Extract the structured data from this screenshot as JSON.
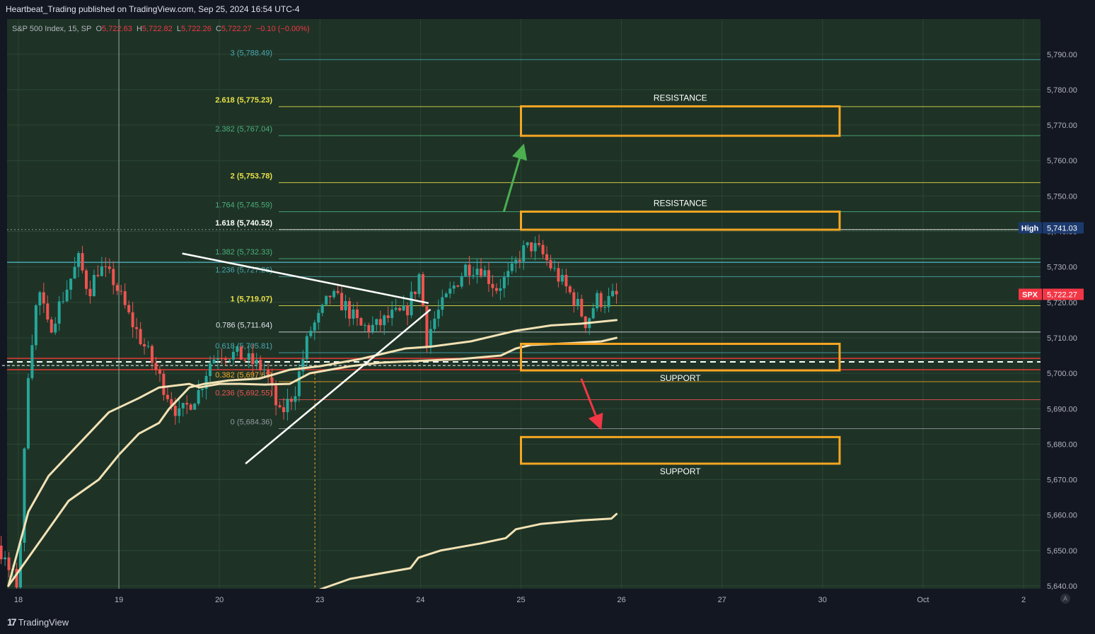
{
  "header": {
    "publisher": "Heartbeat_Trading published on TradingView.com, Sep 25, 2024 16:54 UTC-4"
  },
  "legend": {
    "symbol": "S&P 500 Index, 15, SP",
    "o_label": "O",
    "o": "5,722.63",
    "h_label": "H",
    "h": "5,722.82",
    "l_label": "L",
    "l": "5,722.26",
    "c_label": "C",
    "c": "5,722.27",
    "change": "−0.10 (−0.00%)"
  },
  "brand": {
    "logo": "17",
    "name": "TradingView"
  },
  "scale_button": "A",
  "colors": {
    "background": "#131722",
    "pane": "#1e3326",
    "up": "#26a69a",
    "down": "#ef5350",
    "zone": "#f5a623",
    "vwap": "#f3e2b5",
    "fib_yellow": "#e8e04a",
    "fib_green": "#4caf7d",
    "fib_teal": "#4aa6b0",
    "support_red": "#e53935",
    "arrow_up": "#4caf50",
    "arrow_down": "#f23645"
  },
  "chart_data": {
    "type": "candlestick",
    "symbol": "SPX",
    "interval": "15",
    "ylim": [
      5638,
      5800
    ],
    "xlim": [
      -1,
      31.3
    ],
    "y_ticks": [
      5640,
      5650,
      5660,
      5670,
      5680,
      5690,
      5700,
      5710,
      5720,
      5730,
      5740,
      5750,
      5760,
      5770,
      5780,
      5790
    ],
    "y_tick_labels": [
      "5,640.00",
      "5,650.00",
      "5,660.00",
      "5,670.00",
      "5,680.00",
      "5,690.00",
      "5,700.00",
      "5,710.00",
      "5,720.00",
      "5,730.00",
      "5,740.00",
      "5,750.00",
      "5,760.00",
      "5,770.00",
      "5,780.00",
      "5,790.00"
    ],
    "x_ticks": [
      {
        "t": 0,
        "label": "18"
      },
      {
        "t": 1,
        "label": "19"
      },
      {
        "t": 2,
        "label": "20"
      },
      {
        "t": 3,
        "label": "23"
      },
      {
        "t": 4,
        "label": "24"
      },
      {
        "t": 5,
        "label": "25"
      },
      {
        "t": 6,
        "label": "26"
      },
      {
        "t": 7,
        "label": "27"
      },
      {
        "t": 8,
        "label": "30"
      },
      {
        "t": 9,
        "label": "Oct"
      },
      {
        "t": 10,
        "label": "2"
      }
    ],
    "price_labels": [
      {
        "label": "High",
        "value": 5741.03,
        "text": "5,741.03",
        "color": "#1c3a6e"
      },
      {
        "label": "SPX",
        "value": 5722.27,
        "text": "5,722.27",
        "color": "#f23645"
      }
    ],
    "fib_levels": [
      {
        "ratio": "3",
        "price": 5788.49,
        "text": "3 (5,788.49)",
        "color": "#4aa6b0"
      },
      {
        "ratio": "2.618",
        "price": 5775.23,
        "text": "2.618 (5,775.23)",
        "color": "#e8e04a"
      },
      {
        "ratio": "2.382",
        "price": 5767.04,
        "text": "2.382 (5,767.04)",
        "color": "#4caf7d"
      },
      {
        "ratio": "2",
        "price": 5753.78,
        "text": "2 (5,753.78)",
        "color": "#e8e04a"
      },
      {
        "ratio": "1.764",
        "price": 5745.59,
        "text": "1.764 (5,745.59)",
        "color": "#4caf7d"
      },
      {
        "ratio": "1.618",
        "price": 5740.52,
        "text": "1.618 (5,740.52)",
        "color": "#ffffff"
      },
      {
        "ratio": "1.382",
        "price": 5732.33,
        "text": "1.382 (5,732.33)",
        "color": "#4caf7d"
      },
      {
        "ratio": "1.236",
        "price": 5727.26,
        "text": "1.236 (5,727.26)",
        "color": "#4aa6b0"
      },
      {
        "ratio": "1",
        "price": 5719.07,
        "text": "1 (5,719.07)",
        "color": "#e8e04a"
      },
      {
        "ratio": "0.786",
        "price": 5711.64,
        "text": "0.786 (5,711.64)",
        "color": "#e0e3eb"
      },
      {
        "ratio": "0.618",
        "price": 5705.81,
        "text": "0.618 (5,705.81)",
        "color": "#4aa6b0"
      },
      {
        "ratio": "0.382",
        "price": 5697.62,
        "text": "0.382 (5,697.62)",
        "color": "#f5a623"
      },
      {
        "ratio": "0.236",
        "price": 5692.55,
        "text": "0.236 (5,692.55)",
        "color": "#ef5350"
      },
      {
        "ratio": "0",
        "price": 5684.36,
        "text": "0 (5,684.36)",
        "color": "#9598a1"
      }
    ],
    "zones": [
      {
        "label": "RESISTANCE",
        "x0": 5.0,
        "x1": 8.17,
        "y0": 5767.0,
        "y1": 5775.3,
        "label_pos": "above"
      },
      {
        "label": "RESISTANCE",
        "x0": 5.0,
        "x1": 8.17,
        "y0": 5740.5,
        "y1": 5745.6,
        "label_pos": "above"
      },
      {
        "label": "SUPPORT",
        "x0": 5.0,
        "x1": 8.17,
        "y0": 5700.8,
        "y1": 5708.3,
        "label_pos": "below"
      },
      {
        "label": "SUPPORT",
        "x0": 5.0,
        "x1": 8.17,
        "y0": 5674.5,
        "y1": 5682.0,
        "label_pos": "below"
      },
      {
        "label": "",
        "x0": -1.0,
        "x1": -0.4,
        "y0": 5630,
        "y1": 5660.2,
        "label_pos": "none"
      }
    ],
    "trend_lines": [
      {
        "x0": 1.63,
        "y0": 5733.8,
        "x1": 4.08,
        "y1": 5719.8
      },
      {
        "x0": 2.26,
        "y0": 5674.5,
        "x1": 4.1,
        "y1": 5718.0
      }
    ],
    "arrows": [
      {
        "direction": "up",
        "x0": 4.83,
        "y0": 5745.6,
        "x1": 5.03,
        "y1": 5764.8
      },
      {
        "direction": "down",
        "x0": 5.6,
        "y0": 5698.5,
        "x1": 5.8,
        "y1": 5684.0
      }
    ],
    "vwap_bands": [
      {
        "name": "",
        "points": [
          [
            -0.1,
            5640
          ],
          [
            0.1,
            5661
          ],
          [
            0.3,
            5671
          ],
          [
            0.5,
            5677
          ],
          [
            0.7,
            5683
          ],
          [
            0.9,
            5689
          ],
          [
            1.2,
            5693
          ],
          [
            1.4,
            5696
          ],
          [
            1.7,
            5697
          ],
          [
            1.8,
            5696
          ],
          [
            2.0,
            5697
          ],
          [
            2.2,
            5697
          ],
          [
            2.45,
            5696.8
          ],
          [
            2.7,
            5697
          ],
          [
            2.9,
            5700
          ],
          [
            3.3,
            5702
          ],
          [
            3.6,
            5703
          ],
          [
            4.0,
            5703.5
          ],
          [
            4.4,
            5704
          ],
          [
            4.8,
            5705
          ],
          [
            4.95,
            5707
          ],
          [
            5.1,
            5708
          ],
          [
            5.5,
            5708.5
          ],
          [
            5.8,
            5709
          ],
          [
            5.95,
            5710
          ]
        ]
      },
      {
        "name": "",
        "points": [
          [
            -0.1,
            5640
          ],
          [
            0.2,
            5652
          ],
          [
            0.5,
            5664
          ],
          [
            0.8,
            5670
          ],
          [
            1.0,
            5677
          ],
          [
            1.2,
            5683
          ],
          [
            1.4,
            5686
          ],
          [
            1.5,
            5690
          ],
          [
            1.7,
            5696
          ],
          [
            1.85,
            5697
          ],
          [
            2.1,
            5698
          ],
          [
            2.4,
            5698.5
          ],
          [
            2.7,
            5701
          ],
          [
            3.0,
            5702
          ],
          [
            3.4,
            5704
          ],
          [
            3.7,
            5706
          ],
          [
            3.85,
            5707
          ],
          [
            4.1,
            5707.5
          ],
          [
            4.5,
            5709
          ],
          [
            4.8,
            5711
          ],
          [
            4.95,
            5712
          ],
          [
            5.3,
            5713.5
          ],
          [
            5.6,
            5714
          ],
          [
            5.95,
            5715
          ]
        ]
      },
      {
        "name": "",
        "points": [
          [
            3.0,
            5639
          ],
          [
            3.3,
            5642
          ],
          [
            3.6,
            5643.5
          ],
          [
            3.9,
            5645
          ],
          [
            3.98,
            5648
          ],
          [
            4.2,
            5650
          ],
          [
            4.6,
            5652
          ],
          [
            4.85,
            5653.5
          ],
          [
            4.95,
            5656
          ],
          [
            5.2,
            5657.5
          ],
          [
            5.6,
            5658.5
          ],
          [
            5.9,
            5659
          ],
          [
            5.95,
            5660.3
          ]
        ]
      }
    ],
    "horizontal_lines": [
      {
        "price": 5703.2,
        "style": "dashed",
        "color": "#ffffff",
        "text": ""
      },
      {
        "price": 5701.0,
        "style": "solid",
        "color": "#e53935",
        "text": ""
      },
      {
        "price": 5704.2,
        "style": "solid",
        "color": "#e53935",
        "text": ""
      },
      {
        "price": 5731.3,
        "style": "solid",
        "color": "#4aa6b0",
        "text": ""
      },
      {
        "price": 5740.52,
        "style": "dotted",
        "color": "#9598a1",
        "text": ""
      }
    ],
    "vertical_marks": [
      {
        "t": 1.0,
        "style": "solid"
      },
      {
        "t": 2.95,
        "style": "dashed"
      }
    ],
    "candle_anchors": [
      [
        -1.0,
        5641
      ],
      [
        -0.5,
        5640
      ],
      [
        -0.3,
        5660
      ],
      [
        -0.15,
        5647
      ],
      [
        0.0,
        5640
      ],
      [
        0.1,
        5702
      ],
      [
        0.2,
        5724
      ],
      [
        0.3,
        5712
      ],
      [
        0.45,
        5722
      ],
      [
        0.6,
        5732
      ],
      [
        0.7,
        5723
      ],
      [
        0.8,
        5730
      ],
      [
        0.95,
        5726
      ],
      [
        1.1,
        5716
      ],
      [
        1.3,
        5705
      ],
      [
        1.45,
        5696
      ],
      [
        1.6,
        5688
      ],
      [
        1.8,
        5695
      ],
      [
        1.9,
        5703
      ],
      [
        2.0,
        5706
      ],
      [
        2.2,
        5705
      ],
      [
        2.45,
        5701
      ],
      [
        2.6,
        5688
      ],
      [
        2.75,
        5695
      ],
      [
        2.9,
        5712
      ],
      [
        3.0,
        5716
      ],
      [
        3.1,
        5722
      ],
      [
        3.25,
        5719
      ],
      [
        3.4,
        5713
      ],
      [
        3.55,
        5713
      ],
      [
        3.7,
        5716
      ],
      [
        3.85,
        5717
      ],
      [
        3.95,
        5724
      ],
      [
        4.0,
        5729
      ],
      [
        4.05,
        5709
      ],
      [
        4.15,
        5716
      ],
      [
        4.3,
        5723
      ],
      [
        4.45,
        5730
      ],
      [
        4.6,
        5730
      ],
      [
        4.75,
        5724
      ],
      [
        4.9,
        5728
      ],
      [
        5.0,
        5734
      ],
      [
        5.1,
        5736
      ],
      [
        5.2,
        5734
      ],
      [
        5.3,
        5730
      ],
      [
        5.45,
        5724
      ],
      [
        5.55,
        5720
      ],
      [
        5.65,
        5714
      ],
      [
        5.75,
        5721
      ],
      [
        5.85,
        5720
      ],
      [
        5.95,
        5722.27
      ]
    ]
  }
}
